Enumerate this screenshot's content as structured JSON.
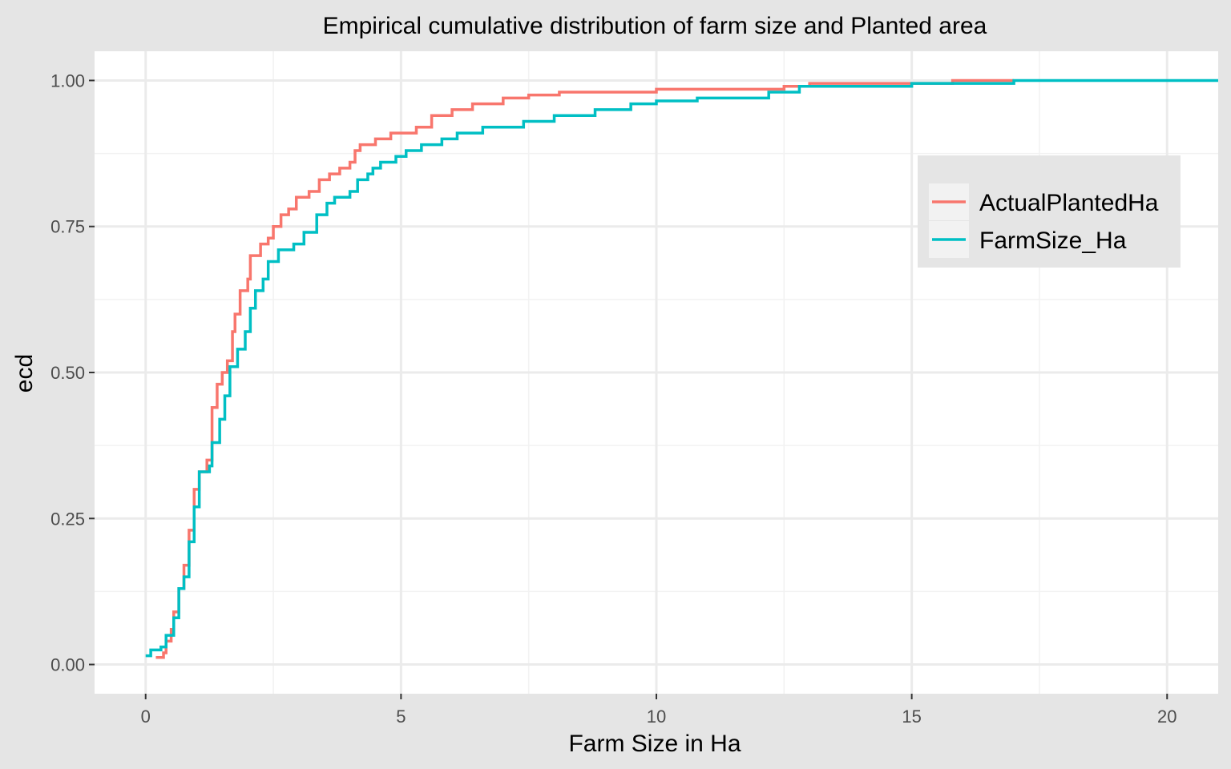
{
  "chart_data": {
    "type": "line",
    "title": "Empirical cumulative distribution of farm size and Planted area",
    "xlabel": "Farm Size in Ha",
    "ylabel": "ecd",
    "xlim": [
      -1,
      21
    ],
    "ylim": [
      -0.05,
      1.05
    ],
    "x_ticks": [
      0,
      5,
      10,
      15,
      20
    ],
    "y_ticks": [
      0.0,
      0.25,
      0.5,
      0.75,
      1.0
    ],
    "x_tick_labels": [
      "0",
      "5",
      "10",
      "15",
      "20"
    ],
    "y_tick_labels": [
      "0.00",
      "0.25",
      "0.50",
      "0.75",
      "1.00"
    ],
    "grid": true,
    "legend_position": "right",
    "series": [
      {
        "name": "ActualPlantedHa",
        "color": "#f8766d",
        "step": true,
        "points": [
          [
            0.2,
            0.012
          ],
          [
            0.35,
            0.02
          ],
          [
            0.4,
            0.04
          ],
          [
            0.5,
            0.06
          ],
          [
            0.55,
            0.09
          ],
          [
            0.65,
            0.13
          ],
          [
            0.75,
            0.17
          ],
          [
            0.85,
            0.23
          ],
          [
            0.95,
            0.3
          ],
          [
            1.05,
            0.33
          ],
          [
            1.2,
            0.35
          ],
          [
            1.3,
            0.44
          ],
          [
            1.4,
            0.48
          ],
          [
            1.5,
            0.5
          ],
          [
            1.6,
            0.52
          ],
          [
            1.7,
            0.57
          ],
          [
            1.75,
            0.6
          ],
          [
            1.85,
            0.64
          ],
          [
            2.0,
            0.66
          ],
          [
            2.05,
            0.7
          ],
          [
            2.25,
            0.72
          ],
          [
            2.4,
            0.73
          ],
          [
            2.5,
            0.75
          ],
          [
            2.65,
            0.77
          ],
          [
            2.8,
            0.78
          ],
          [
            2.95,
            0.8
          ],
          [
            3.2,
            0.81
          ],
          [
            3.4,
            0.83
          ],
          [
            3.6,
            0.84
          ],
          [
            3.8,
            0.85
          ],
          [
            4.0,
            0.86
          ],
          [
            4.1,
            0.88
          ],
          [
            4.2,
            0.89
          ],
          [
            4.5,
            0.9
          ],
          [
            4.8,
            0.91
          ],
          [
            5.3,
            0.92
          ],
          [
            5.6,
            0.94
          ],
          [
            6.0,
            0.95
          ],
          [
            6.4,
            0.96
          ],
          [
            7.0,
            0.97
          ],
          [
            7.5,
            0.975
          ],
          [
            8.1,
            0.98
          ],
          [
            10.0,
            0.985
          ],
          [
            12.5,
            0.99
          ],
          [
            13.0,
            0.995
          ],
          [
            15.8,
            1.0
          ],
          [
            17.0,
            1.0
          ]
        ]
      },
      {
        "name": "FarmSize_Ha",
        "color": "#00bfc4",
        "step": true,
        "points": [
          [
            0.0,
            0.015
          ],
          [
            0.1,
            0.025
          ],
          [
            0.3,
            0.03
          ],
          [
            0.4,
            0.05
          ],
          [
            0.55,
            0.08
          ],
          [
            0.65,
            0.13
          ],
          [
            0.75,
            0.15
          ],
          [
            0.85,
            0.21
          ],
          [
            0.95,
            0.27
          ],
          [
            1.05,
            0.33
          ],
          [
            1.25,
            0.34
          ],
          [
            1.3,
            0.38
          ],
          [
            1.45,
            0.42
          ],
          [
            1.55,
            0.46
          ],
          [
            1.65,
            0.51
          ],
          [
            1.8,
            0.54
          ],
          [
            1.95,
            0.57
          ],
          [
            2.05,
            0.61
          ],
          [
            2.15,
            0.64
          ],
          [
            2.3,
            0.66
          ],
          [
            2.4,
            0.69
          ],
          [
            2.6,
            0.71
          ],
          [
            2.9,
            0.72
          ],
          [
            3.1,
            0.74
          ],
          [
            3.35,
            0.77
          ],
          [
            3.55,
            0.79
          ],
          [
            3.7,
            0.8
          ],
          [
            4.0,
            0.81
          ],
          [
            4.15,
            0.83
          ],
          [
            4.35,
            0.84
          ],
          [
            4.45,
            0.85
          ],
          [
            4.6,
            0.86
          ],
          [
            4.9,
            0.87
          ],
          [
            5.1,
            0.88
          ],
          [
            5.4,
            0.89
          ],
          [
            5.8,
            0.9
          ],
          [
            6.1,
            0.91
          ],
          [
            6.6,
            0.92
          ],
          [
            7.4,
            0.93
          ],
          [
            8.0,
            0.94
          ],
          [
            8.8,
            0.95
          ],
          [
            9.5,
            0.96
          ],
          [
            10.0,
            0.965
          ],
          [
            10.8,
            0.97
          ],
          [
            12.2,
            0.98
          ],
          [
            12.8,
            0.99
          ],
          [
            15.0,
            0.995
          ],
          [
            17.0,
            1.0
          ],
          [
            21.0,
            1.0
          ]
        ]
      }
    ]
  }
}
